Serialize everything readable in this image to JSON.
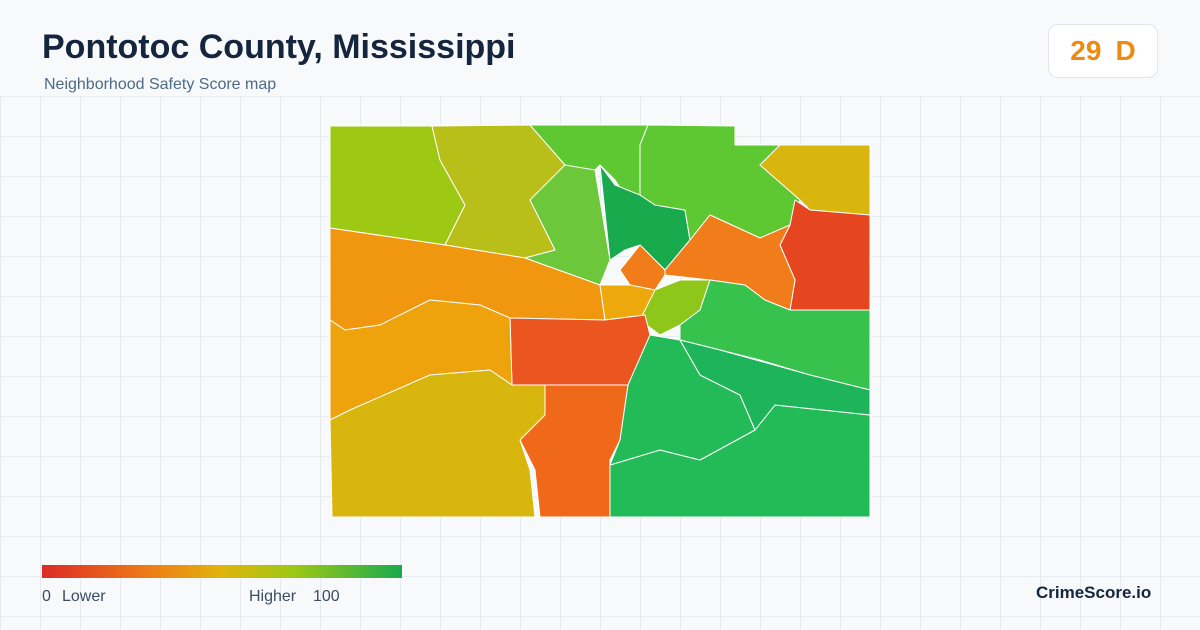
{
  "header": {
    "title": "Pontotoc County, Mississippi",
    "subtitle": "Neighborhood Safety Score map"
  },
  "score": {
    "value": 29,
    "grade": "D"
  },
  "legend": {
    "min": 0,
    "min_label": "Lower",
    "max_label": "Higher",
    "max": 100
  },
  "brand": "CrimeScore.io"
}
